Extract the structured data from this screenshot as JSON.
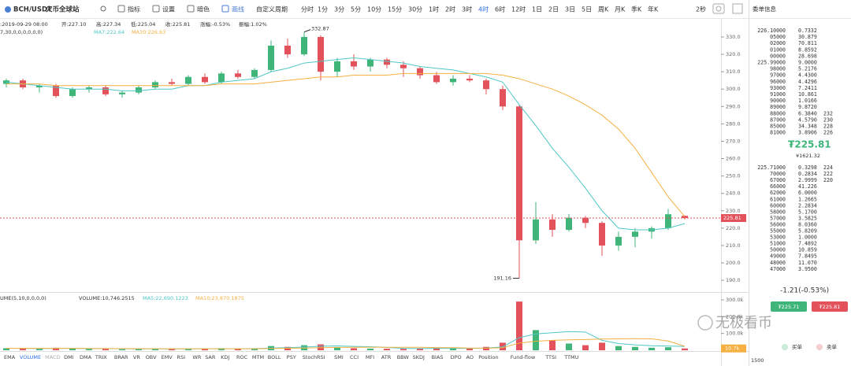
{
  "toolbar": {
    "symbol": "BCH/USDT",
    "exchange": "火币全球站",
    "tools": [
      "指标",
      "设置",
      "暗色",
      "画线",
      "自定义周期"
    ],
    "periods": [
      "分时",
      "1分",
      "3分",
      "5分",
      "10分",
      "15分",
      "30分",
      "1时",
      "2时",
      "3时",
      "4时",
      "6时",
      "12时",
      "1日",
      "2日",
      "3日",
      "5日",
      "周K",
      "月K",
      "季K",
      "年K"
    ],
    "active_period": "4时",
    "refresh": "2秒"
  },
  "info": {
    "time": ":2019-09-29 08:00",
    "open": "开:227.10",
    "high": "高:227.34",
    "low": "低:225.04",
    "close": "收:225.81",
    "change": "涨幅:-0.53%",
    "amplitude": "振幅:1.02%",
    "ma_params": "7,30,0,0,0,0,0,0)",
    "ma7": "MA7:222.64",
    "ma30": "MA30:226.63",
    "vol_params": "UME(5,10,0,0,0,0)",
    "volume": "VOLUME:10,746.2515",
    "vol_ma5": "MA5:22,690.1223",
    "vol_ma10": "MA10:23,870.1875"
  },
  "indicators": [
    "EMA",
    "VOLUME",
    "MACD",
    "DMI",
    "DMA",
    "TRIX",
    "BRAR",
    "VR",
    "OBV",
    "EMV",
    "RSI",
    "WR",
    "SAR",
    "KDJ",
    "ROC",
    "MTM",
    "BOLL",
    "PSY",
    "StochRSI",
    "SMI",
    "CCI",
    "MFI",
    "ATR",
    "BBW",
    "SKDJ",
    "BIAS",
    "DPO",
    "AO",
    "Position",
    "Fund-flow",
    "TTSI",
    "TTMU"
  ],
  "chart_data": {
    "type": "candlestick",
    "up_color": "#3fb57a",
    "down_color": "#e3515a",
    "open": [
      303,
      305,
      301,
      302,
      296,
      300,
      301,
      297,
      298,
      301,
      304,
      303,
      307,
      304,
      309,
      307,
      311,
      325,
      320,
      330,
      310,
      316,
      313,
      317,
      314,
      312,
      308,
      304,
      306,
      305,
      300,
      290,
      213,
      225,
      219,
      226,
      223,
      210,
      215,
      218,
      220,
      227.1
    ],
    "high": [
      306,
      306,
      303,
      303,
      301,
      302,
      302,
      299,
      302,
      305,
      306,
      308,
      309,
      310,
      311,
      312,
      328,
      329,
      332.87,
      331,
      318,
      320,
      318,
      318,
      316,
      313,
      310,
      308,
      308,
      306,
      302,
      291,
      235,
      228,
      228,
      227,
      224,
      218,
      220,
      221,
      231,
      227.34
    ],
    "low": [
      301,
      300,
      298,
      295,
      295,
      298,
      296,
      295,
      297,
      300,
      302,
      302,
      303,
      303,
      306,
      306,
      310,
      318,
      319,
      305,
      307,
      311,
      310,
      312,
      307,
      306,
      303,
      302,
      304,
      297,
      288,
      191.16,
      211,
      215,
      218,
      220,
      204,
      207,
      209,
      214,
      219,
      225.04
    ],
    "close": [
      305,
      301,
      302,
      296,
      300,
      301,
      297,
      298,
      301,
      304,
      303,
      307,
      304,
      309,
      307,
      311,
      325,
      320,
      330,
      310,
      316,
      313,
      317,
      314,
      312,
      308,
      304,
      306,
      305,
      300,
      290,
      213,
      225,
      219,
      226,
      223,
      210,
      215,
      218,
      220,
      228,
      225.81
    ],
    "ma_series": [
      {
        "color": "#4fc7c6",
        "values": [
          304,
          303,
          302,
          301,
          300,
          300,
          300,
          299,
          299,
          300,
          300,
          302,
          302,
          304,
          305,
          306,
          310,
          312,
          315,
          316,
          317,
          318,
          317,
          316,
          315,
          313,
          312,
          311,
          309,
          307,
          304,
          291,
          279,
          266,
          255,
          243,
          230,
          220,
          219,
          219,
          220,
          222.64
        ]
      },
      {
        "color": "#f5b041",
        "values": [
          303,
          303,
          303,
          302,
          302,
          302,
          302,
          302,
          302,
          302,
          302,
          302,
          302,
          303,
          303,
          303,
          304,
          305,
          306,
          307,
          307,
          308,
          308,
          308,
          309,
          309,
          309,
          309,
          309,
          309,
          308,
          306,
          303,
          300,
          296,
          291,
          285,
          277,
          266,
          252,
          238,
          226.63
        ]
      }
    ],
    "ylim": [
      183.7,
      340.4
    ],
    "yticks": [
      {
        "value": 330,
        "label": "330.0"
      },
      {
        "value": 320,
        "label": "320.0"
      },
      {
        "value": 310,
        "label": "310.0"
      },
      {
        "value": 300,
        "label": "300.0"
      },
      {
        "value": 290,
        "label": "290.0"
      },
      {
        "value": 280,
        "label": "280.0"
      },
      {
        "value": 270,
        "label": "270.0"
      },
      {
        "value": 260,
        "label": "260.0"
      },
      {
        "value": 250,
        "label": "250.0"
      },
      {
        "value": 240,
        "label": "240.0"
      },
      {
        "value": 230,
        "label": "230.0"
      },
      {
        "value": 220,
        "label": "220.0"
      },
      {
        "value": 210,
        "label": "210.0"
      },
      {
        "value": 200,
        "label": "200.0"
      },
      {
        "value": 190,
        "label": "190.0"
      }
    ],
    "volume": [
      12000,
      9000,
      8000,
      15000,
      10000,
      7000,
      9000,
      6000,
      8000,
      11000,
      7000,
      10000,
      9000,
      12000,
      8000,
      10000,
      25000,
      20000,
      30000,
      35000,
      18000,
      12000,
      10000,
      9000,
      8000,
      12000,
      15000,
      10000,
      9000,
      20000,
      45000,
      290000,
      120000,
      60000,
      40000,
      30000,
      45000,
      25000,
      20000,
      15000,
      18000,
      10746.2515
    ],
    "volume_ma_series": [
      {
        "color": "#4fc7c6",
        "values": [
          12000,
          11000,
          10000,
          11000,
          11000,
          10000,
          10000,
          9000,
          8000,
          8000,
          8000,
          8000,
          9000,
          10000,
          9000,
          10000,
          13000,
          15000,
          19000,
          24000,
          26000,
          23000,
          21000,
          17000,
          11000,
          10000,
          11000,
          11000,
          11000,
          13000,
          20000,
          75000,
          97000,
          104000,
          111000,
          108000,
          59000,
          40000,
          32000,
          27000,
          25000,
          22690.1223
        ]
      },
      {
        "color": "#f5b041",
        "values": [
          12000,
          11500,
          11000,
          11000,
          11000,
          10500,
          10000,
          10000,
          9500,
          9500,
          9000,
          9000,
          9000,
          9000,
          9000,
          9000,
          10500,
          11500,
          13000,
          15500,
          17000,
          17500,
          18000,
          17500,
          17500,
          17500,
          16000,
          15000,
          13000,
          12500,
          15000,
          43000,
          54000,
          59000,
          62000,
          64000,
          67000,
          68000,
          69000,
          68000,
          55000,
          23870.1875
        ]
      }
    ],
    "vlim": [
      0,
      328000
    ],
    "vticks": [
      {
        "value": 300000,
        "label": "300.0k"
      },
      {
        "value": 200000,
        "label": "200.0k"
      },
      {
        "value": 100000,
        "label": "100.0k"
      }
    ],
    "volume_tag": "10.7k"
  },
  "order_book": {
    "title": "委单信息",
    "asks": [
      [
        "226.10000",
        "0.7332"
      ],
      [
        "05000",
        "30.879"
      ],
      [
        "02000",
        "70.811"
      ],
      [
        "01000",
        "8.8592"
      ],
      [
        "00000",
        "28.698"
      ],
      [
        "225.99000",
        "9.0000"
      ],
      [
        "98000",
        "5.2176"
      ],
      [
        "97000",
        "4.4300"
      ],
      [
        "96000",
        "4.4296"
      ],
      [
        "93000",
        "7.2411"
      ],
      [
        "91000",
        "10.861"
      ],
      [
        "90000",
        "1.0166"
      ],
      [
        "89000",
        "9.8720"
      ],
      [
        "88000",
        "6.3840",
        "232"
      ],
      [
        "87000",
        "4.5790",
        "230"
      ],
      [
        "85000",
        "34.348",
        "228"
      ],
      [
        "81000",
        "3.8906",
        "226"
      ]
    ],
    "last_price": "₮225.81",
    "last_cny": "¥1621.32",
    "bids": [
      [
        "225.71000",
        "0.3298",
        "224"
      ],
      [
        "70000",
        "0.2834",
        "222"
      ],
      [
        "67000",
        "2.9999",
        "220"
      ],
      [
        "66000",
        "41.226"
      ],
      [
        "62000",
        "6.0000"
      ],
      [
        "61000",
        "1.2665"
      ],
      [
        "60000",
        "2.2834"
      ],
      [
        "58000",
        "5.1700"
      ],
      [
        "57000",
        "3.5825"
      ],
      [
        "56000",
        "8.0360"
      ],
      [
        "55000",
        "5.8209"
      ],
      [
        "53000",
        "1.0000"
      ],
      [
        "51000",
        "7.4892"
      ],
      [
        "50000",
        "10.859"
      ],
      [
        "49000",
        "7.8495"
      ],
      [
        "48000",
        "11.070"
      ],
      [
        "47000",
        "3.9500"
      ]
    ],
    "change": "-1.21(-0.53%)",
    "bid_button": "₮225.71",
    "ask_button": "₮225.81",
    "legend_buy": "买单",
    "legend_sell": "卖单",
    "depth_tick": "1500"
  },
  "watermark": "无极看币"
}
